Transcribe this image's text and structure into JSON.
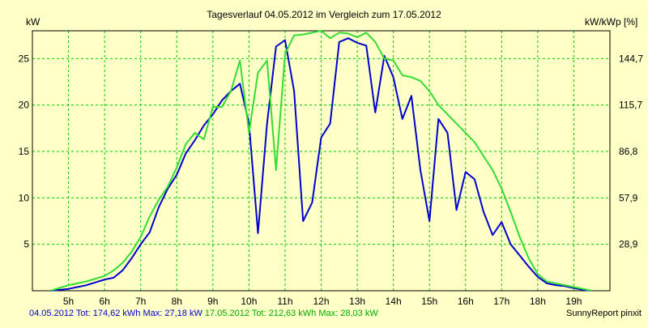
{
  "chart_data": {
    "type": "line",
    "title": "Tagesverlauf 04.05.2012 im Vergleich zum 17.05.2012",
    "ylabel_left": "kW",
    "ylabel_right": "kW/kWp [%]",
    "xlim": [
      4.0,
      20.0
    ],
    "ylim": [
      0,
      28
    ],
    "x_ticks": [
      5,
      6,
      7,
      8,
      9,
      10,
      11,
      12,
      13,
      14,
      15,
      16,
      17,
      18,
      19
    ],
    "x_tick_labels": [
      "5h",
      "6h",
      "7h",
      "8h",
      "9h",
      "10h",
      "11h",
      "12h",
      "13h",
      "14h",
      "15h",
      "16h",
      "17h",
      "18h",
      "19h"
    ],
    "y_ticks": [
      5,
      10,
      15,
      20,
      25
    ],
    "y_tick_labels": [
      "5",
      "10",
      "15",
      "20",
      "25"
    ],
    "y2_ticks": [
      5,
      10,
      15,
      20,
      25
    ],
    "y2_tick_labels": [
      "28,9",
      "57,9",
      "86,8",
      "115,7",
      "144,7"
    ],
    "grid": true,
    "colors": {
      "background": "#FFFFC8",
      "grid": "#00CC00",
      "axis": "#000000"
    },
    "series": [
      {
        "name": "04.05.2012",
        "color": "#0000CC",
        "x": [
          4.5,
          5.0,
          5.5,
          6.0,
          6.25,
          6.5,
          6.75,
          7.0,
          7.25,
          7.5,
          7.75,
          8.0,
          8.25,
          8.5,
          8.75,
          9.0,
          9.25,
          9.5,
          9.75,
          10.0,
          10.25,
          10.5,
          10.75,
          11.0,
          11.25,
          11.5,
          11.75,
          12.0,
          12.25,
          12.5,
          12.75,
          13.0,
          13.25,
          13.5,
          13.75,
          14.0,
          14.25,
          14.5,
          14.75,
          15.0,
          15.25,
          15.5,
          15.75,
          16.0,
          16.25,
          16.5,
          16.75,
          17.0,
          17.25,
          17.5,
          17.75,
          18.0,
          18.25,
          18.5,
          18.75,
          19.0,
          19.25,
          19.5
        ],
        "values": [
          0,
          0.2,
          0.6,
          1.2,
          1.4,
          2.2,
          3.5,
          5.0,
          6.3,
          9.0,
          11.0,
          12.5,
          14.8,
          16.2,
          17.8,
          19.0,
          20.5,
          21.5,
          22.3,
          18.0,
          6.2,
          18.0,
          26.3,
          27.0,
          21.5,
          7.5,
          9.5,
          16.5,
          18.0,
          26.8,
          27.2,
          26.7,
          26.4,
          19.2,
          25.3,
          23.0,
          18.5,
          21.0,
          13.0,
          7.5,
          18.5,
          17.0,
          8.7,
          12.8,
          12.0,
          8.5,
          6.0,
          7.4,
          5.0,
          3.8,
          2.6,
          1.5,
          0.8,
          0.6,
          0.5,
          0.3,
          0.1,
          0
        ]
      },
      {
        "name": "17.05.2012",
        "color": "#33DD33",
        "x": [
          4.5,
          5.0,
          5.5,
          6.0,
          6.25,
          6.5,
          6.75,
          7.0,
          7.25,
          7.5,
          7.75,
          8.0,
          8.25,
          8.5,
          8.75,
          9.0,
          9.25,
          9.5,
          9.75,
          10.0,
          10.25,
          10.5,
          10.75,
          11.0,
          11.25,
          11.5,
          11.75,
          12.0,
          12.25,
          12.5,
          12.75,
          13.0,
          13.25,
          13.5,
          13.75,
          14.0,
          14.25,
          14.5,
          14.75,
          15.0,
          15.25,
          15.5,
          15.75,
          16.0,
          16.25,
          16.5,
          16.75,
          17.0,
          17.25,
          17.5,
          17.75,
          18.0,
          18.25,
          18.5,
          18.75,
          19.0,
          19.25,
          19.5
        ],
        "values": [
          0,
          0.6,
          1.0,
          1.6,
          2.2,
          3.0,
          4.2,
          5.8,
          8.0,
          9.8,
          11.2,
          13.3,
          15.8,
          17.0,
          16.3,
          19.8,
          19.8,
          21.5,
          24.8,
          17.0,
          23.5,
          24.8,
          13.0,
          25.5,
          27.5,
          27.6,
          27.8,
          28.0,
          27.2,
          27.8,
          27.7,
          27.3,
          27.8,
          26.8,
          25.0,
          24.8,
          23.2,
          23.0,
          22.6,
          21.5,
          20.0,
          19.0,
          18.0,
          17.0,
          16.0,
          14.5,
          13.0,
          11.0,
          8.5,
          5.8,
          3.5,
          1.8,
          1.0,
          0.8,
          0.6,
          0.4,
          0.2,
          0
        ]
      }
    ],
    "footer": {
      "series1_date": "04.05.2012",
      "series1_stats": "Tot: 174,62 kWh Max: 27,18 kW",
      "series2_date": "17.05.2012",
      "series2_stats": "Tot: 212,63 kWh Max: 28,03 kW",
      "credit": "SunnyReport pinxit"
    }
  }
}
